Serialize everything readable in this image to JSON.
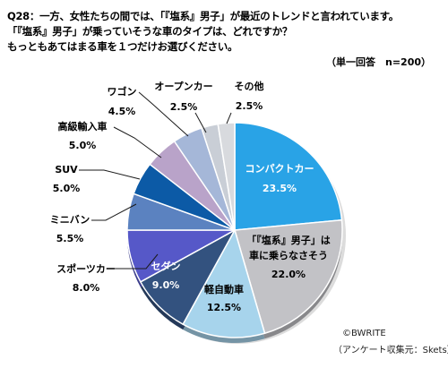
{
  "question": {
    "line1": "Q28：一方、女性たちの間では、「『塩系』男子」が最近のトレンドと言われています。",
    "line2": "「『塩系』男子」が乗っていそうな車のタイプは、どれですか？",
    "line3": "もっともあてはまる車を１つだけお選びください。",
    "sample_note": "（単一回答　n=200）"
  },
  "footer": {
    "copyright": "©BWRITE",
    "source": "（アンケート収集元：Skets）"
  },
  "chart_data": {
    "type": "pie",
    "start_angle_deg": 0,
    "direction": "clockwise",
    "unit": "%",
    "slices": [
      {
        "label": "コンパクトカー",
        "value": 23.5,
        "value_text": "23.5%",
        "color": "#29A3E6"
      },
      {
        "label": "「『塩系』男子」は車に乗らなさそう",
        "label_lines": [
          "「『塩系』男子」は",
          "車に乗らなさそう"
        ],
        "value": 22.0,
        "value_text": "22.0%",
        "color": "#C2C2C6"
      },
      {
        "label": "軽自動車",
        "value": 12.5,
        "value_text": "12.5%",
        "color": "#A7D4EC"
      },
      {
        "label": "セダン",
        "value": 9.0,
        "value_text": "9.0%",
        "color": "#33527F"
      },
      {
        "label": "スポーツカー",
        "value": 8.0,
        "value_text": "8.0%",
        "color": "#5658C8"
      },
      {
        "label": "ミニバン",
        "value": 5.5,
        "value_text": "5.5%",
        "color": "#5B82C0"
      },
      {
        "label": "SUV",
        "value": 5.0,
        "value_text": "5.0%",
        "color": "#0C5AA6"
      },
      {
        "label": "高級輸入車",
        "value": 5.0,
        "value_text": "5.0%",
        "color": "#B9A3C9"
      },
      {
        "label": "ワゴン",
        "value": 4.5,
        "value_text": "4.5%",
        "color": "#A5B7D8"
      },
      {
        "label": "オープンカー",
        "value": 2.5,
        "value_text": "2.5%",
        "color": "#C9CED6"
      },
      {
        "label": "その他",
        "value": 2.5,
        "value_text": "2.5%",
        "color": "#D8DADE"
      }
    ]
  }
}
